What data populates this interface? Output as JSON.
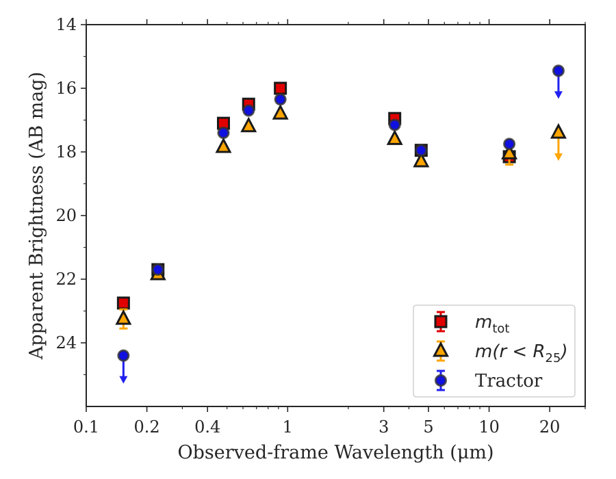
{
  "chart_data": {
    "type": "scatter",
    "xlabel": "Observed-frame Wavelength (μm)",
    "ylabel": "Apparent Brightness (AB mag)",
    "x_scale": "log",
    "xlim": [
      0.1,
      30
    ],
    "ylim": [
      26,
      14
    ],
    "y_inverted": true,
    "x_ticks": [
      {
        "value": 0.1,
        "label": "0.1"
      },
      {
        "value": 0.2,
        "label": "0.2"
      },
      {
        "value": 0.4,
        "label": "0.4"
      },
      {
        "value": 1,
        "label": "1"
      },
      {
        "value": 3,
        "label": "3"
      },
      {
        "value": 5,
        "label": "5"
      },
      {
        "value": 10,
        "label": "10"
      },
      {
        "value": 20,
        "label": "20"
      }
    ],
    "y_ticks": [
      {
        "value": 14,
        "label": "14"
      },
      {
        "value": 16,
        "label": "16"
      },
      {
        "value": 18,
        "label": "18"
      },
      {
        "value": 20,
        "label": "20"
      },
      {
        "value": 22,
        "label": "22"
      },
      {
        "value": 24,
        "label": "24"
      }
    ],
    "grid": false,
    "legend_position": "lower-right",
    "series": [
      {
        "name": "m_tot",
        "marker": "square",
        "color": "#e00000",
        "errcolor": "#e00000",
        "points": [
          {
            "x": 0.153,
            "y": 22.75
          },
          {
            "x": 0.227,
            "y": 21.7
          },
          {
            "x": 0.48,
            "y": 17.1
          },
          {
            "x": 0.64,
            "y": 16.5
          },
          {
            "x": 0.92,
            "y": 16.0
          },
          {
            "x": 3.4,
            "y": 16.95
          },
          {
            "x": 4.6,
            "y": 17.95
          },
          {
            "x": 12.6,
            "y": 18.15
          }
        ]
      },
      {
        "name": "m(r < R25)",
        "marker": "triangle",
        "color": "#ffa500",
        "errcolor": "#ffa500",
        "points": [
          {
            "x": 0.153,
            "y": 23.25,
            "err": 0.3
          },
          {
            "x": 0.227,
            "y": 21.85
          },
          {
            "x": 0.48,
            "y": 17.85
          },
          {
            "x": 0.64,
            "y": 17.2
          },
          {
            "x": 0.92,
            "y": 16.8
          },
          {
            "x": 3.4,
            "y": 17.6
          },
          {
            "x": 4.6,
            "y": 18.3
          },
          {
            "x": 12.6,
            "y": 18.05,
            "err": 0.35
          },
          {
            "x": 22.1,
            "y": 17.4,
            "upper_limit": true
          }
        ]
      },
      {
        "name": "Tractor",
        "marker": "circle",
        "color": "#1010e0",
        "errcolor": "#2020f0",
        "points": [
          {
            "x": 0.153,
            "y": 24.4,
            "upper_limit": true
          },
          {
            "x": 0.227,
            "y": 21.7
          },
          {
            "x": 0.48,
            "y": 17.4
          },
          {
            "x": 0.64,
            "y": 16.7
          },
          {
            "x": 0.92,
            "y": 16.35
          },
          {
            "x": 3.4,
            "y": 17.15
          },
          {
            "x": 4.6,
            "y": 17.95
          },
          {
            "x": 12.6,
            "y": 17.75
          },
          {
            "x": 22.1,
            "y": 15.45,
            "upper_limit": true
          }
        ]
      }
    ],
    "legend": [
      {
        "base": "m",
        "sub": "tot"
      },
      {
        "base": "m(r < R",
        "sub": "25",
        "tail": ")"
      },
      {
        "base": "Tractor"
      }
    ]
  }
}
